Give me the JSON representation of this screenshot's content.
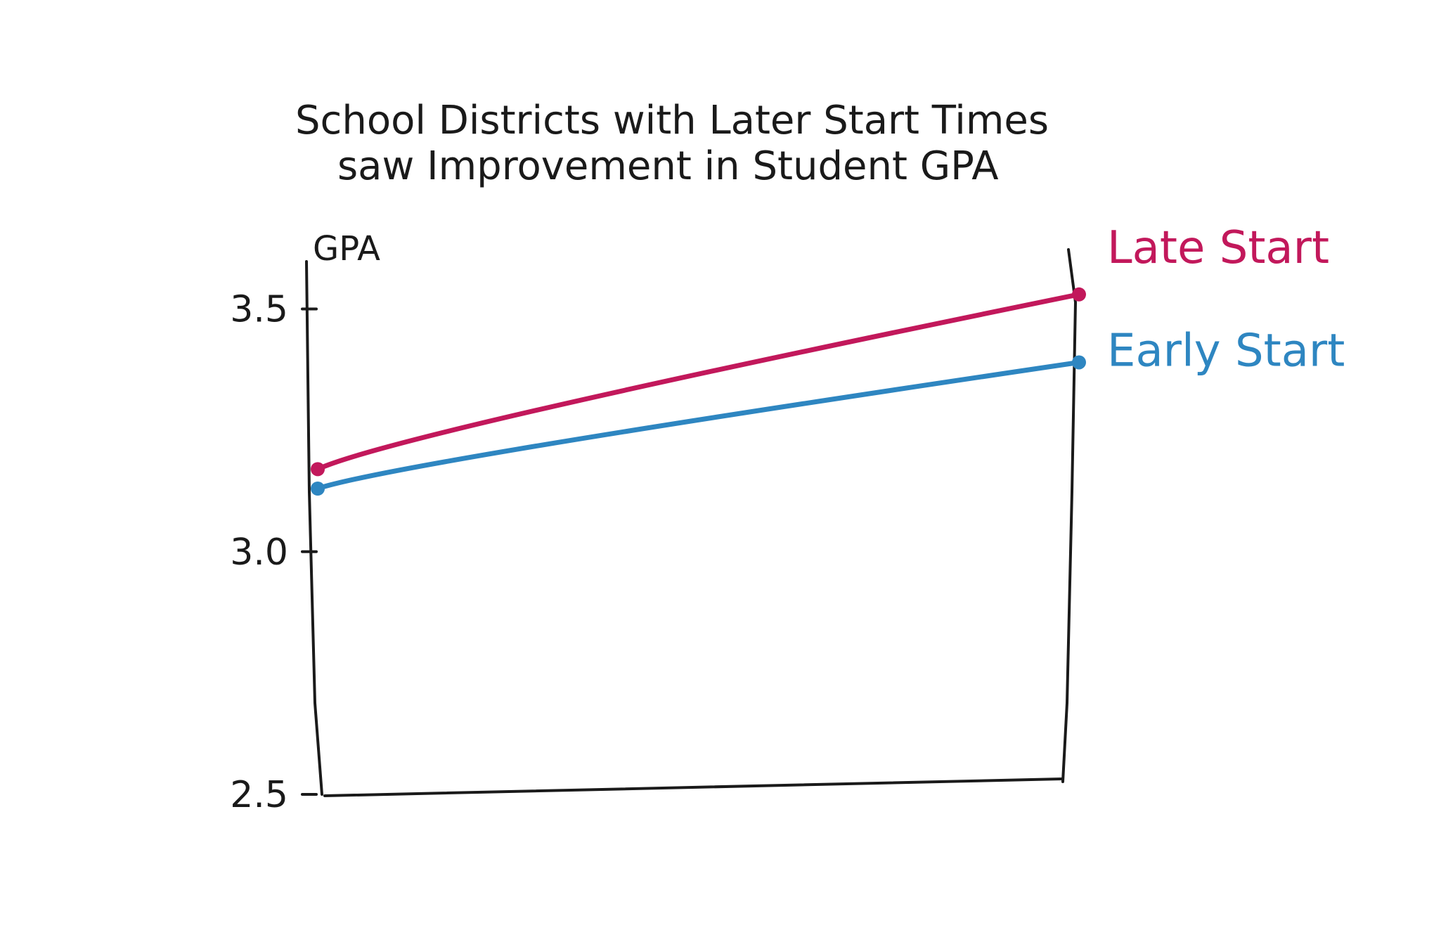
{
  "chart_data": {
    "type": "line",
    "title_lines": [
      "School Districts with Later Start Times",
      "saw Improvement in Student GPA"
    ],
    "ylabel": "GPA",
    "xlabel": "",
    "ylim": [
      2.5,
      3.55
    ],
    "yticks": [
      {
        "value": 3.5,
        "label": "3.5"
      },
      {
        "value": 3.0,
        "label": "3.0"
      },
      {
        "value": 2.5,
        "label": "2.5"
      }
    ],
    "x": [
      0,
      1
    ],
    "series": [
      {
        "name": "Late Start",
        "color": "#c2185b",
        "values": [
          3.17,
          3.53
        ]
      },
      {
        "name": "Early Start",
        "color": "#2e86c1",
        "values": [
          3.13,
          3.39
        ]
      }
    ],
    "grid": false,
    "legend_placement": "right, at line ends"
  }
}
